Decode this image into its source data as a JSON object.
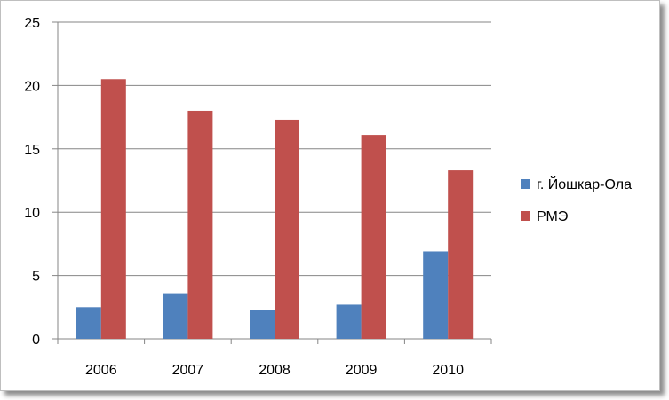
{
  "chart_data": {
    "type": "bar",
    "categories": [
      "2006",
      "2007",
      "2008",
      "2009",
      "2010"
    ],
    "series": [
      {
        "name": "г. Йошкар-Ола",
        "values": [
          2.5,
          3.6,
          2.3,
          2.7,
          6.9
        ],
        "color": "#4f81bd"
      },
      {
        "name": "РМЭ",
        "values": [
          20.5,
          18.0,
          17.3,
          16.1,
          13.3
        ],
        "color": "#c0504d"
      }
    ],
    "ylim": [
      0,
      25
    ],
    "yticks": [
      0,
      5,
      10,
      15,
      20,
      25
    ],
    "grid": true,
    "legend": "right",
    "title": "",
    "xlabel": "",
    "ylabel": ""
  }
}
